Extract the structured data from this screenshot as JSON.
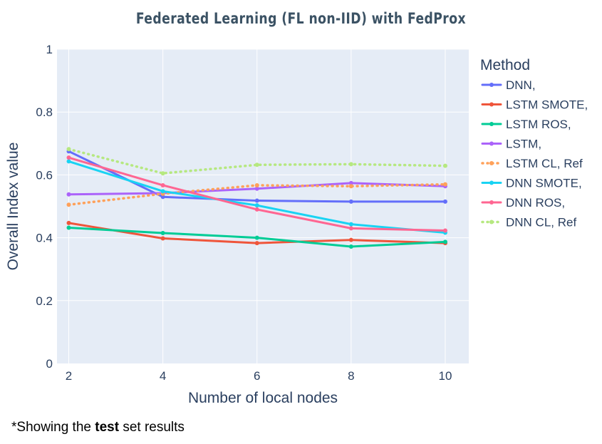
{
  "chart_data": {
    "type": "line",
    "title": "Federated Learning (FL non-IID) with FedProx",
    "xlabel": "Number of local nodes",
    "ylabel": "Overall Index value",
    "x": [
      2,
      4,
      6,
      8,
      10
    ],
    "x_ticks": [
      "2",
      "4",
      "6",
      "8",
      "10"
    ],
    "y_ticks": [
      "0",
      "0.2",
      "0.4",
      "0.6",
      "0.8",
      "1"
    ],
    "xlim": [
      1.75,
      10.5
    ],
    "ylim": [
      0,
      1
    ],
    "grid": true,
    "plot_background": "#e5ecf6",
    "legend_title": "Method",
    "legend_position": "right",
    "series": [
      {
        "name": "DNN,",
        "color": "#636efa",
        "dash": "solid",
        "values": [
          0.675,
          0.53,
          0.518,
          0.515,
          0.515
        ]
      },
      {
        "name": "LSTM SMOTE,",
        "color": "#ef553b",
        "dash": "solid",
        "values": [
          0.447,
          0.398,
          0.383,
          0.393,
          0.383
        ]
      },
      {
        "name": "LSTM ROS,",
        "color": "#00cc96",
        "dash": "solid",
        "values": [
          0.432,
          0.415,
          0.4,
          0.372,
          0.387
        ]
      },
      {
        "name": "LSTM,",
        "color": "#ab63fa",
        "dash": "solid",
        "values": [
          0.538,
          0.542,
          0.556,
          0.574,
          0.564
        ]
      },
      {
        "name": "LSTM CL, Ref",
        "color": "#ffa15a",
        "dash": "dot",
        "values": [
          0.505,
          0.54,
          0.567,
          0.564,
          0.57
        ]
      },
      {
        "name": "DNN SMOTE,",
        "color": "#19d3f3",
        "dash": "solid",
        "values": [
          0.643,
          0.548,
          0.503,
          0.443,
          0.416
        ]
      },
      {
        "name": "DNN ROS,",
        "color": "#ff6692",
        "dash": "solid",
        "values": [
          0.655,
          0.567,
          0.49,
          0.43,
          0.423
        ]
      },
      {
        "name": "DNN CL, Ref",
        "color": "#b6e880",
        "dash": "dot",
        "values": [
          0.682,
          0.605,
          0.632,
          0.634,
          0.629
        ]
      }
    ]
  },
  "footnote": {
    "prefix": "*Showing the ",
    "bold": "test",
    "suffix": " set results"
  }
}
